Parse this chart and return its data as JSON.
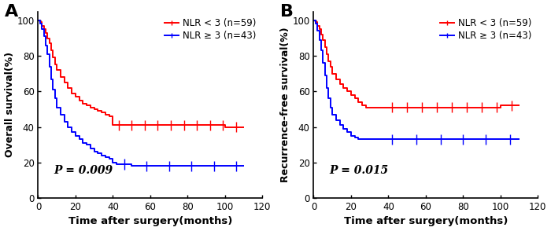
{
  "panel_A": {
    "label": "A",
    "ylabel": "Overall survival(%)",
    "pvalue": "P = 0.009",
    "red_label": "NLR < 3 (n=59)",
    "blue_label": "NLR ≥ 3 (n=43)",
    "red_x": [
      0,
      1,
      2,
      3,
      4,
      5,
      6,
      7,
      8,
      9,
      10,
      12,
      14,
      16,
      18,
      20,
      22,
      24,
      26,
      28,
      30,
      32,
      34,
      36,
      38,
      40,
      42,
      44,
      46,
      48,
      50,
      55,
      60,
      65,
      70,
      75,
      80,
      85,
      90,
      95,
      100,
      105,
      110
    ],
    "red_y": [
      100,
      99,
      97,
      95,
      93,
      90,
      87,
      83,
      79,
      75,
      72,
      68,
      65,
      62,
      59,
      57,
      55,
      53,
      52,
      51,
      50,
      49,
      48,
      47,
      46,
      41,
      41,
      41,
      41,
      41,
      41,
      41,
      41,
      41,
      41,
      41,
      41,
      41,
      41,
      41,
      40,
      40,
      40
    ],
    "blue_x": [
      0,
      1,
      2,
      3,
      4,
      5,
      6,
      7,
      8,
      9,
      10,
      12,
      14,
      16,
      18,
      20,
      22,
      24,
      26,
      28,
      30,
      32,
      34,
      36,
      38,
      40,
      42,
      44,
      46,
      50,
      55,
      60,
      65,
      70,
      75,
      80,
      85,
      90,
      95,
      100,
      105,
      110
    ],
    "blue_y": [
      100,
      98,
      95,
      91,
      86,
      81,
      74,
      67,
      61,
      56,
      51,
      47,
      43,
      40,
      37,
      35,
      33,
      31,
      30,
      28,
      26,
      25,
      24,
      23,
      22,
      20,
      19,
      19,
      19,
      18,
      18,
      18,
      18,
      18,
      18,
      18,
      18,
      18,
      18,
      18,
      18,
      18
    ],
    "red_censor_x": [
      43,
      50,
      57,
      64,
      71,
      78,
      85,
      92,
      99,
      106
    ],
    "blue_censor_x": [
      46,
      58,
      70,
      82,
      94,
      106
    ]
  },
  "panel_B": {
    "label": "B",
    "ylabel": "Recurrence-free survival(%)",
    "pvalue": "P = 0.015",
    "red_label": "NLR < 3 (n=59)",
    "blue_label": "NLR ≥ 3 (n=43)",
    "red_x": [
      0,
      1,
      2,
      3,
      4,
      5,
      6,
      7,
      8,
      9,
      10,
      12,
      14,
      16,
      18,
      20,
      22,
      24,
      26,
      28,
      30,
      32,
      34,
      36,
      38,
      40,
      42,
      44,
      46,
      50,
      55,
      60,
      65,
      70,
      75,
      80,
      85,
      90,
      95,
      100,
      105,
      110
    ],
    "red_y": [
      100,
      99,
      97,
      95,
      92,
      89,
      85,
      81,
      77,
      74,
      70,
      67,
      64,
      62,
      60,
      58,
      56,
      54,
      52,
      51,
      51,
      51,
      51,
      51,
      51,
      51,
      51,
      51,
      51,
      51,
      51,
      51,
      51,
      51,
      51,
      51,
      51,
      51,
      51,
      52,
      52,
      52
    ],
    "blue_x": [
      0,
      1,
      2,
      3,
      4,
      5,
      6,
      7,
      8,
      9,
      10,
      12,
      14,
      16,
      18,
      20,
      22,
      24,
      26,
      28,
      30,
      32,
      34,
      36,
      38,
      40,
      42,
      44,
      46,
      50,
      55,
      60,
      65,
      70,
      75,
      80,
      85,
      90,
      95,
      100,
      105,
      110
    ],
    "blue_y": [
      100,
      98,
      94,
      89,
      83,
      76,
      69,
      62,
      56,
      51,
      47,
      44,
      41,
      39,
      37,
      35,
      34,
      33,
      33,
      33,
      33,
      33,
      33,
      33,
      33,
      33,
      33,
      33,
      33,
      33,
      33,
      33,
      33,
      33,
      33,
      33,
      33,
      33,
      33,
      33,
      33,
      33
    ],
    "red_censor_x": [
      42,
      50,
      58,
      66,
      74,
      82,
      90,
      98,
      106
    ],
    "blue_censor_x": [
      42,
      55,
      68,
      80,
      92,
      105
    ]
  },
  "xlabel": "Time after surgery(months)",
  "xlim": [
    0,
    120
  ],
  "ylim": [
    0,
    105
  ],
  "xticks": [
    0,
    20,
    40,
    60,
    80,
    100,
    120
  ],
  "yticks": [
    0,
    20,
    40,
    60,
    80,
    100
  ],
  "red_color": "#FF0000",
  "blue_color": "#0000FF",
  "linewidth": 1.4,
  "censor_tick_height": 3.0,
  "censor_tick_lw": 1.0,
  "tick_fontsize": 8.5,
  "label_fontsize": 9.5,
  "legend_fontsize": 8.5,
  "pvalue_fontsize": 10,
  "panel_label_fontsize": 16
}
